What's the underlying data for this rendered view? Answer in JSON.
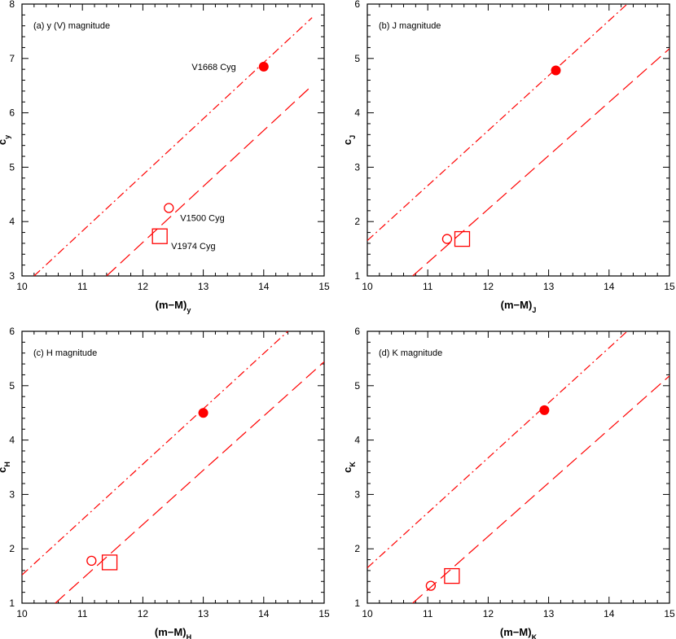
{
  "colors": {
    "marker": "#ff0000",
    "line": "#ff0000",
    "axis": "#000000"
  },
  "chart_data": [
    {
      "type": "scatter",
      "panel_label": "(a) y (V) magnitude",
      "xlabel": "(m−M)",
      "xlabel_sub": "y",
      "ylabel": "c",
      "ylabel_sub": "y",
      "xlim": [
        10,
        15
      ],
      "ylim": [
        3,
        8
      ],
      "xticks": [
        "10",
        "11",
        "12",
        "13",
        "14",
        "15"
      ],
      "yticks": [
        "3",
        "4",
        "5",
        "6",
        "7",
        "8"
      ],
      "grid": false,
      "lines": [
        {
          "style": "dashdot",
          "points": [
            [
              10.2,
              3
            ],
            [
              14.8,
              7.75
            ]
          ]
        },
        {
          "style": "dashed",
          "points": [
            [
              11.4,
              3
            ],
            [
              14.8,
              6.5
            ]
          ]
        }
      ],
      "points": [
        {
          "marker": "filled-circle",
          "x": 14.0,
          "y": 6.85,
          "label": "V1668 Cyg",
          "label_side": "left"
        },
        {
          "marker": "open-circle",
          "x": 12.43,
          "y": 4.25,
          "label": "V1500 Cyg",
          "label_side": "below-right"
        },
        {
          "marker": "open-square",
          "x": 12.28,
          "y": 3.73,
          "label": "V1974 Cyg",
          "label_side": "below-right"
        }
      ]
    },
    {
      "type": "scatter",
      "panel_label": "(b) J magnitude",
      "xlabel": "(m−M)",
      "xlabel_sub": "J",
      "ylabel": "c",
      "ylabel_sub": "J",
      "xlim": [
        10,
        15
      ],
      "ylim": [
        1,
        6
      ],
      "xticks": [
        "10",
        "11",
        "12",
        "13",
        "14",
        "15"
      ],
      "yticks": [
        "1",
        "2",
        "3",
        "4",
        "5",
        "6"
      ],
      "grid": false,
      "lines": [
        {
          "style": "dashdot",
          "points": [
            [
              10.0,
              1.65
            ],
            [
              14.3,
              6.0
            ]
          ]
        },
        {
          "style": "dashed",
          "points": [
            [
              10.75,
              1.0
            ],
            [
              15.0,
              5.18
            ]
          ]
        }
      ],
      "points": [
        {
          "marker": "filled-circle",
          "x": 13.12,
          "y": 4.78
        },
        {
          "marker": "open-circle",
          "x": 11.32,
          "y": 1.68
        },
        {
          "marker": "open-square",
          "x": 11.57,
          "y": 1.68
        }
      ]
    },
    {
      "type": "scatter",
      "panel_label": "(c) H magnitude",
      "xlabel": "(m−M)",
      "xlabel_sub": "H",
      "ylabel": "c",
      "ylabel_sub": "H",
      "xlim": [
        10,
        15
      ],
      "ylim": [
        1,
        6
      ],
      "xticks": [
        "10",
        "11",
        "12",
        "13",
        "14",
        "15"
      ],
      "yticks": [
        "1",
        "2",
        "3",
        "4",
        "5",
        "6"
      ],
      "grid": false,
      "lines": [
        {
          "style": "dashdot",
          "points": [
            [
              10.0,
              1.52
            ],
            [
              14.4,
              6.0
            ]
          ]
        },
        {
          "style": "dashed",
          "points": [
            [
              10.55,
              1.0
            ],
            [
              15.0,
              5.44
            ]
          ]
        }
      ],
      "points": [
        {
          "marker": "filled-circle",
          "x": 13.0,
          "y": 4.5
        },
        {
          "marker": "open-circle",
          "x": 11.15,
          "y": 1.78
        },
        {
          "marker": "open-square",
          "x": 11.45,
          "y": 1.75
        }
      ]
    },
    {
      "type": "scatter",
      "panel_label": "(d) K magnitude",
      "xlabel": "(m−M)",
      "xlabel_sub": "K",
      "ylabel": "c",
      "ylabel_sub": "K",
      "xlim": [
        10,
        15
      ],
      "ylim": [
        1,
        6
      ],
      "xticks": [
        "10",
        "11",
        "12",
        "13",
        "14",
        "15"
      ],
      "yticks": [
        "1",
        "2",
        "3",
        "4",
        "5",
        "6"
      ],
      "grid": false,
      "lines": [
        {
          "style": "dashdot",
          "points": [
            [
              10.0,
              1.65
            ],
            [
              14.3,
              6.0
            ]
          ]
        },
        {
          "style": "dashed",
          "points": [
            [
              10.75,
              1.0
            ],
            [
              15.0,
              5.18
            ]
          ]
        }
      ],
      "points": [
        {
          "marker": "filled-circle",
          "x": 12.93,
          "y": 4.55
        },
        {
          "marker": "open-circle",
          "x": 11.05,
          "y": 1.32
        },
        {
          "marker": "open-square",
          "x": 11.4,
          "y": 1.5
        }
      ]
    }
  ]
}
